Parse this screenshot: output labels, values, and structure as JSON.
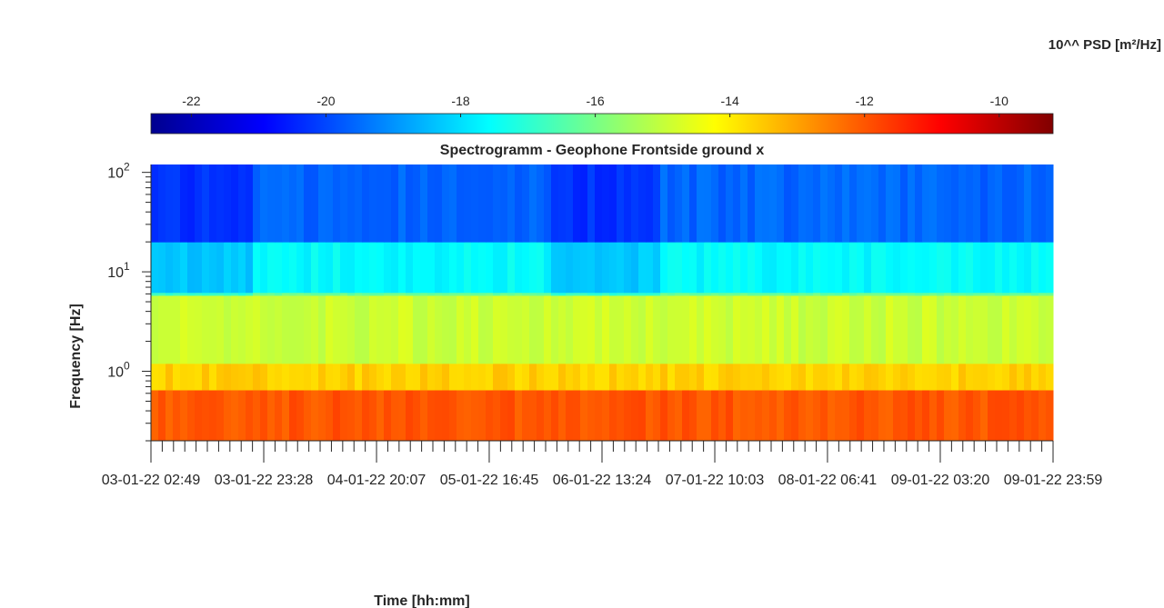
{
  "chart_data": {
    "type": "heatmap",
    "title": "Spectrogramm - Geophone Frontside ground x",
    "xlabel": "Time [hh:mm]",
    "ylabel": "Frequency [Hz]",
    "colorbar_label": "10^^ PSD [m²/Hz]",
    "colorbar_range": [
      -22.6,
      -9.2
    ],
    "colorbar_ticks": [
      "-22",
      "-20",
      "-18",
      "-16",
      "-14",
      "-12",
      "-10"
    ],
    "colorbar_tick_values": [
      -22,
      -20,
      -18,
      -16,
      -14,
      -12,
      -10
    ],
    "colormap": "jet",
    "y_scale": "log",
    "ylim": [
      0.2,
      120
    ],
    "y_tick_values": [
      1,
      10,
      100
    ],
    "y_tick_labels": [
      {
        "base": "10",
        "exp": "0"
      },
      {
        "base": "10",
        "exp": "1"
      },
      {
        "base": "10",
        "exp": "2"
      }
    ],
    "x_tick_labels": [
      "03-01-22 02:49",
      "03-01-22 23:28",
      "04-01-22 20:07",
      "05-01-22 16:45",
      "06-01-22 13:24",
      "07-01-22 10:03",
      "08-01-22 06:41",
      "09-01-22 03:20",
      "09-01-22 23:59"
    ],
    "x_minor_ticks_per_interval": 10,
    "frequency_bands": [
      {
        "f_low": 0.2,
        "f_high": 0.65,
        "psd_log10": -12.0
      },
      {
        "f_low": 0.65,
        "f_high": 1.2,
        "psd_log10": -13.6
      },
      {
        "f_low": 1.2,
        "f_high": 5.8,
        "psd_log10": -14.9
      },
      {
        "f_low": 5.8,
        "f_high": 6.2,
        "psd_log10": -16.2
      },
      {
        "f_low": 6.2,
        "f_high": 20,
        "psd_log10": -17.6
      },
      {
        "f_low": 20,
        "f_high": 120,
        "psd_log10": -19.6
      }
    ],
    "quiet_periods": [
      {
        "start": "03-01-22 02:49",
        "end": "03-01-22 22:00",
        "psd_shift": -0.7
      },
      {
        "start": "06-01-22 04:00",
        "end": "07-01-22 00:00",
        "psd_shift": -0.7
      }
    ]
  }
}
